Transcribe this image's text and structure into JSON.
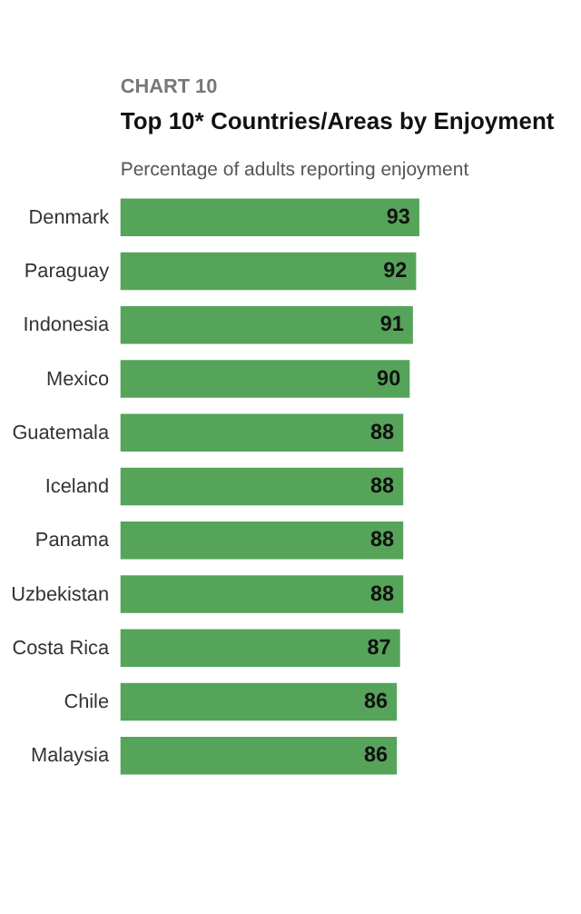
{
  "chart_data": {
    "type": "bar",
    "orientation": "horizontal",
    "title": "Top 10* Countries/Areas by Enjoyment",
    "subtitle": "Percentage of adults reporting enjoyment",
    "annotations": [
      "CHART 10"
    ],
    "categories": [
      "Denmark",
      "Paraguay",
      "Indonesia",
      "Mexico",
      "Guatemala",
      "Iceland",
      "Panama",
      "Uzbekistan",
      "Costa Rica",
      "Chile",
      "Malaysia"
    ],
    "values": [
      93,
      92,
      91,
      90,
      88,
      88,
      88,
      88,
      87,
      86,
      86
    ],
    "color": "#55a45a",
    "data_labels": true
  }
}
